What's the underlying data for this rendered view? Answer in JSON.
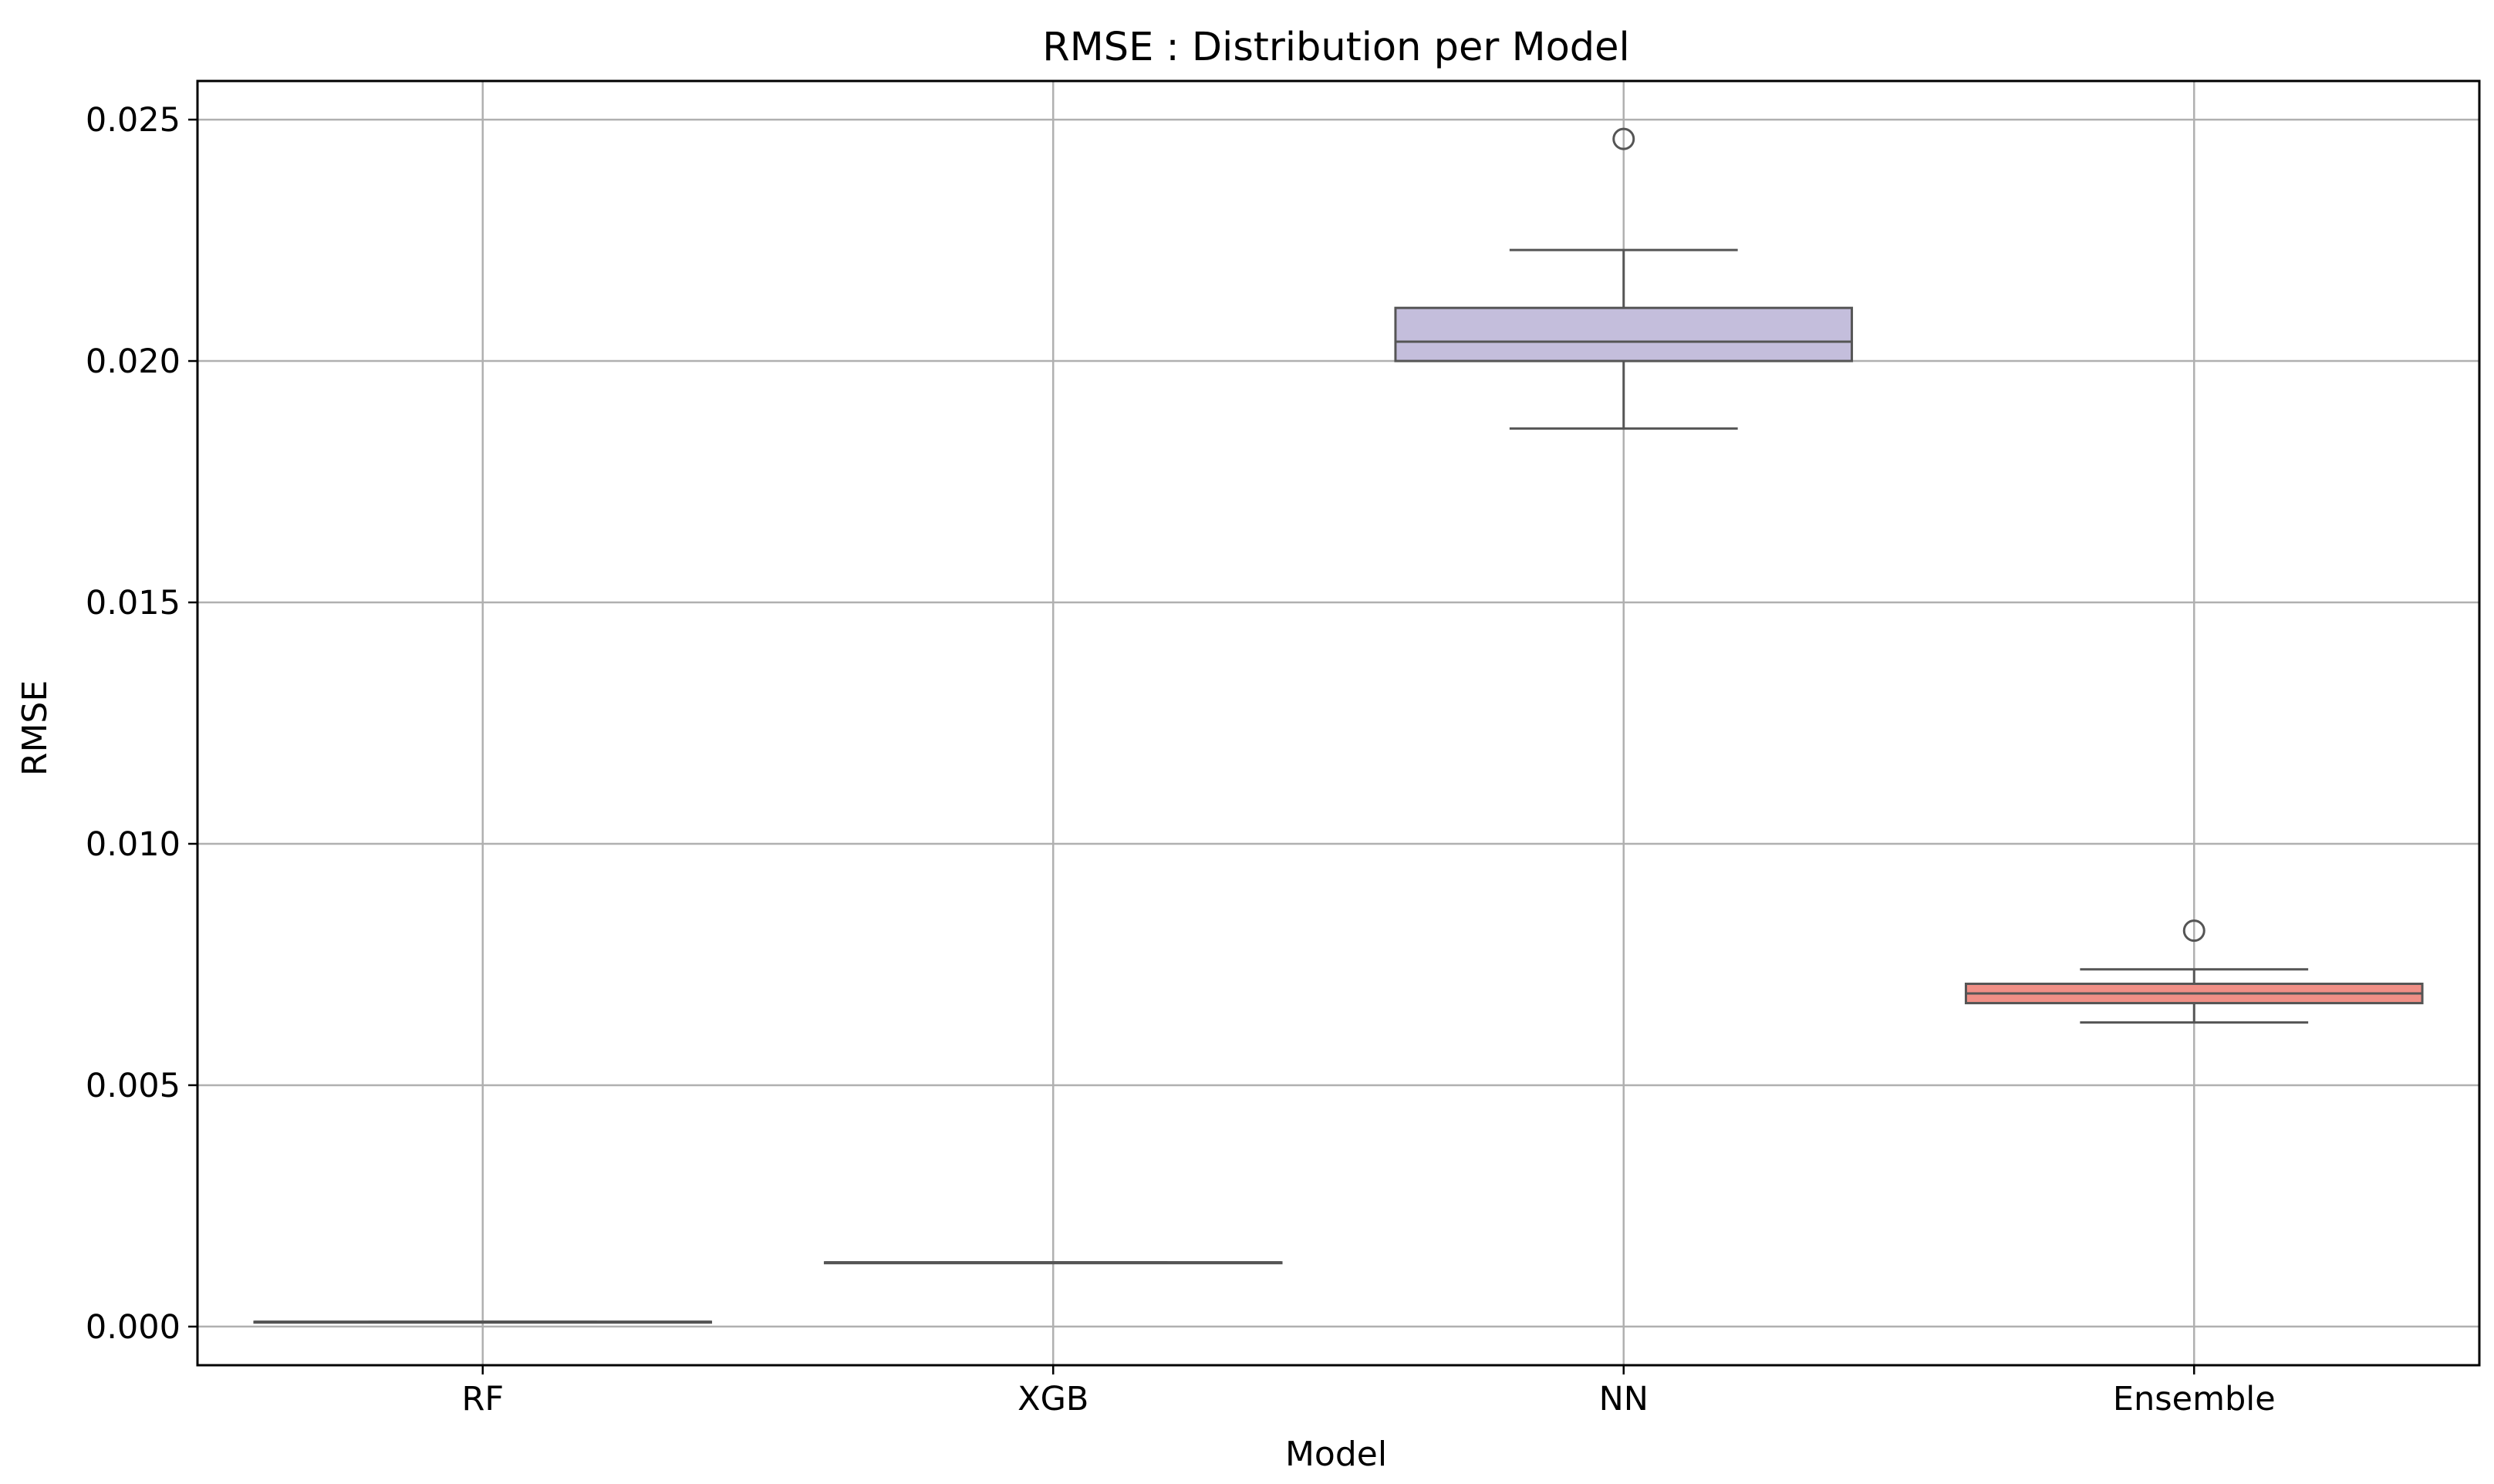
{
  "chart_data": {
    "type": "box",
    "title": "RMSE : Distribution per Model",
    "xlabel": "Model",
    "ylabel": "RMSE",
    "ylim": [
      -0.0008,
      0.0258
    ],
    "grid": true,
    "yticks": [
      "0.000",
      "0.005",
      "0.010",
      "0.015",
      "0.020",
      "0.025"
    ],
    "ytick_values": [
      0.0,
      0.005,
      0.01,
      0.015,
      0.02,
      0.025
    ],
    "categories": [
      "RF",
      "XGB",
      "NN",
      "Ensemble"
    ],
    "series": [
      {
        "category": "RF",
        "color": "#8fbc8f",
        "whisker_low": 0.0001,
        "q1": 0.0001,
        "median": 0.0001,
        "q3": 0.0001,
        "whisker_high": 0.0001,
        "outliers": []
      },
      {
        "category": "XGB",
        "color": "#add8e6",
        "whisker_low": 0.00133,
        "q1": 0.00133,
        "median": 0.00133,
        "q3": 0.00133,
        "whisker_high": 0.00133,
        "outliers": []
      },
      {
        "category": "NN",
        "color": "#c4bedc",
        "whisker_low": 0.0186,
        "q1": 0.02,
        "median": 0.0204,
        "q3": 0.0211,
        "whisker_high": 0.0223,
        "outliers": [
          0.0246
        ]
      },
      {
        "category": "Ensemble",
        "color": "#f08f86",
        "whisker_low": 0.0063,
        "q1": 0.0067,
        "median": 0.0069,
        "q3": 0.0071,
        "whisker_high": 0.0074,
        "outliers": [
          0.0082
        ]
      }
    ]
  }
}
